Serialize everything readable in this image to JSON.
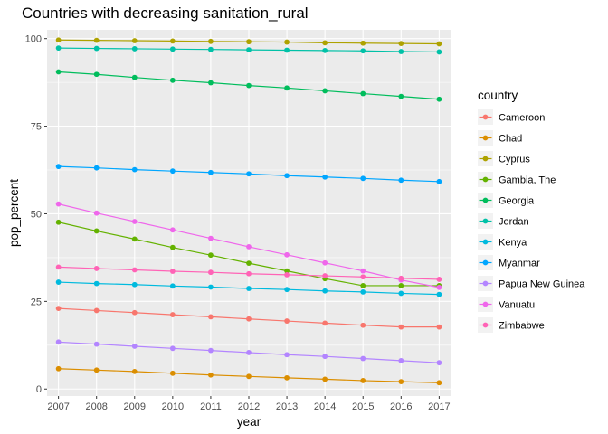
{
  "chart_data": {
    "type": "line",
    "title": "Countries with decreasing sanitation_rural",
    "xlabel": "year",
    "ylabel": "pop_percent",
    "x": [
      2007,
      2008,
      2009,
      2010,
      2011,
      2012,
      2013,
      2014,
      2015,
      2016,
      2017
    ],
    "xlim": [
      2006.7,
      2017.3
    ],
    "ylim": [
      -2,
      102.5
    ],
    "yticks": [
      0,
      25,
      50,
      75,
      100
    ],
    "grid": true,
    "legend": {
      "title": "country",
      "position": "right"
    },
    "series": [
      {
        "name": "Cameroon",
        "color": "#F8766D",
        "values": [
          23.0,
          22.4,
          21.8,
          21.2,
          20.6,
          20.0,
          19.4,
          18.8,
          18.2,
          17.7,
          17.7
        ]
      },
      {
        "name": "Chad",
        "color": "#DB8E00",
        "values": [
          5.8,
          5.4,
          5.0,
          4.5,
          4.0,
          3.6,
          3.2,
          2.8,
          2.4,
          2.1,
          1.8
        ]
      },
      {
        "name": "Cyprus",
        "color": "#AEA200",
        "values": [
          99.6,
          99.5,
          99.4,
          99.3,
          99.2,
          99.1,
          99.0,
          98.8,
          98.7,
          98.6,
          98.5
        ]
      },
      {
        "name": "Gambia, The",
        "color": "#64B200",
        "values": [
          47.6,
          45.1,
          42.8,
          40.4,
          38.2,
          35.9,
          33.7,
          31.5,
          29.5,
          29.5,
          29.5
        ]
      },
      {
        "name": "Georgia",
        "color": "#00BD5C",
        "values": [
          90.5,
          89.8,
          88.9,
          88.1,
          87.4,
          86.6,
          85.9,
          85.1,
          84.3,
          83.5,
          82.7
        ]
      },
      {
        "name": "Jordan",
        "color": "#00C1A7",
        "values": [
          97.3,
          97.2,
          97.1,
          97.0,
          96.9,
          96.8,
          96.7,
          96.6,
          96.5,
          96.3,
          96.2
        ]
      },
      {
        "name": "Kenya",
        "color": "#00BADE",
        "values": [
          30.5,
          30.1,
          29.8,
          29.4,
          29.1,
          28.7,
          28.4,
          28.0,
          27.7,
          27.3,
          27.0
        ]
      },
      {
        "name": "Myanmar",
        "color": "#00A6FF",
        "values": [
          63.5,
          63.1,
          62.6,
          62.2,
          61.8,
          61.4,
          60.9,
          60.5,
          60.1,
          59.6,
          59.2
        ]
      },
      {
        "name": "Papua New Guinea",
        "color": "#B385FF",
        "values": [
          13.4,
          12.8,
          12.2,
          11.6,
          11.0,
          10.4,
          9.8,
          9.3,
          8.7,
          8.1,
          7.5
        ]
      },
      {
        "name": "Vanuatu",
        "color": "#EF67EB",
        "values": [
          52.8,
          50.2,
          47.8,
          45.4,
          43.0,
          40.6,
          38.3,
          36.0,
          33.7,
          31.1,
          29.0
        ]
      },
      {
        "name": "Zimbabwe",
        "color": "#FF63B6",
        "values": [
          34.8,
          34.4,
          34.0,
          33.6,
          33.3,
          32.9,
          32.6,
          32.3,
          32.0,
          31.6,
          31.3
        ]
      }
    ]
  }
}
